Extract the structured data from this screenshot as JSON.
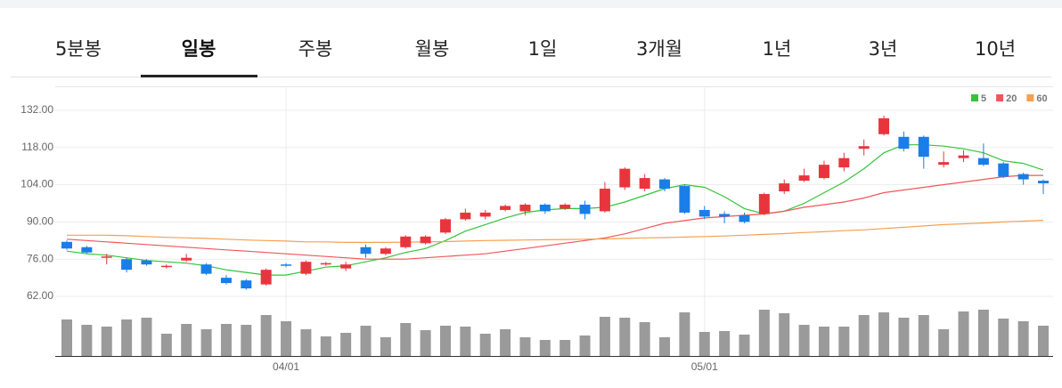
{
  "tabs": [
    "5분봉",
    "일봉",
    "주봉",
    "월봉",
    "1일",
    "3개월",
    "1년",
    "3년",
    "10년"
  ],
  "active_tab": 1,
  "chart_data": [
    {
      "type": "candlestick",
      "categories": [
        null,
        null,
        null,
        null,
        null,
        null,
        null,
        null,
        null,
        null,
        null,
        "04/01",
        null,
        null,
        null,
        null,
        null,
        null,
        null,
        null,
        null,
        null,
        null,
        null,
        null,
        null,
        null,
        null,
        null,
        null,
        null,
        null,
        "05/01",
        null,
        null,
        null,
        null,
        null,
        null,
        null,
        null,
        null,
        null,
        null,
        null,
        null,
        null,
        null,
        null,
        null
      ],
      "open": [
        82.5,
        80.5,
        76.5,
        76,
        75.5,
        73,
        75.5,
        74,
        69,
        68,
        66.5,
        74,
        70.5,
        74,
        72.5,
        80.5,
        78,
        80.5,
        82,
        86,
        91,
        92,
        94.5,
        94,
        96.5,
        95,
        96.5,
        94,
        103,
        102.5,
        106,
        103.5,
        94.5,
        93,
        92.5,
        93,
        101.5,
        105.5,
        106.5,
        110.5,
        117.5,
        123,
        122,
        122,
        111.5,
        114,
        114,
        112,
        108,
        105.5
      ],
      "high": [
        83,
        81,
        78,
        76.5,
        76,
        74,
        78,
        74.5,
        70,
        68.5,
        72.5,
        74.5,
        75.5,
        75,
        75,
        81.5,
        80.5,
        85,
        85,
        91.5,
        95,
        94.5,
        96.5,
        97,
        97,
        97,
        98,
        105,
        110.5,
        108,
        106.5,
        104,
        96,
        94,
        93.5,
        101,
        106,
        110,
        113,
        116,
        121,
        130,
        124,
        122.5,
        116.5,
        117,
        119.5,
        112.5,
        108.5,
        106
      ],
      "low": [
        79.5,
        78,
        74,
        71,
        73.5,
        72.5,
        75,
        70,
        66.5,
        64.5,
        66,
        73,
        70,
        73.5,
        71.5,
        76.5,
        77.5,
        80,
        81.5,
        85.5,
        90.5,
        91,
        94,
        92.5,
        93,
        94.5,
        91,
        93.5,
        102,
        101.5,
        101.5,
        93,
        91,
        89.5,
        89.5,
        92.5,
        100.5,
        105,
        106,
        109,
        115,
        122.5,
        116.5,
        110,
        110.5,
        112.5,
        111,
        106.5,
        104,
        100.5
      ],
      "close": [
        80,
        78.5,
        77,
        72,
        74,
        73.5,
        76.5,
        70.5,
        67,
        65,
        72,
        73.5,
        75,
        74.5,
        74,
        78,
        80,
        84.5,
        84.5,
        91,
        93.5,
        93.5,
        96,
        96.5,
        94,
        96.5,
        93,
        102.5,
        110,
        106.5,
        102.5,
        93.5,
        92,
        92,
        90,
        100.5,
        104.5,
        107.5,
        111.5,
        114,
        118.5,
        129,
        117.5,
        114.5,
        112.5,
        115,
        111.5,
        107,
        106,
        104.5
      ],
      "up_color": "#e8353d",
      "down_color": "#1a7ee8",
      "series": [
        {
          "name": "5",
          "color": "#33c43a",
          "values": [
            79,
            78,
            77.5,
            76.5,
            75.5,
            75,
            74.5,
            73.5,
            72,
            71,
            70,
            70,
            71.5,
            73,
            73.5,
            75,
            76.5,
            78.5,
            80,
            83,
            86.5,
            89,
            91.5,
            93.5,
            94.5,
            95,
            95,
            95.5,
            97.5,
            100,
            102.5,
            104,
            103,
            99.5,
            95,
            93,
            94,
            97,
            101,
            105,
            110,
            116,
            119,
            119,
            118.5,
            117.5,
            116,
            113,
            112,
            109.5
          ]
        },
        {
          "name": "20",
          "color": "#f0565a",
          "values": [
            83.5,
            83,
            82.5,
            82,
            81.5,
            81,
            80.5,
            80,
            79.5,
            79,
            78.5,
            78,
            77.5,
            77,
            76.5,
            76,
            76,
            76,
            76.5,
            77,
            77.5,
            78,
            79,
            80,
            81,
            82,
            83,
            84,
            85.5,
            87.5,
            89.5,
            90.5,
            91.5,
            92,
            92.5,
            93,
            94,
            95.5,
            96.5,
            97.5,
            99,
            101,
            102,
            103,
            104,
            105,
            106,
            107,
            107.5,
            107.5
          ]
        },
        {
          "name": "60",
          "color": "#f5a050",
          "values": [
            85,
            85,
            85,
            84.8,
            84.5,
            84.2,
            84,
            83.8,
            83.5,
            83.2,
            83,
            82.8,
            82.5,
            82.5,
            82.3,
            82.3,
            82.3,
            82.4,
            82.5,
            82.6,
            82.8,
            83,
            83.1,
            83.2,
            83.3,
            83.4,
            83.5,
            83.6,
            83.8,
            84,
            84.1,
            84.3,
            84.5,
            84.7,
            85,
            85.3,
            85.6,
            86,
            86.3,
            86.7,
            87,
            87.5,
            88,
            88.5,
            89,
            89.3,
            89.6,
            90,
            90.3,
            90.6
          ]
        }
      ],
      "ylim": [
        59,
        141
      ],
      "yticks": [
        {
          "value": 132,
          "label": "132.00"
        },
        {
          "value": 118,
          "label": "118.00"
        },
        {
          "value": 104,
          "label": "104.00"
        },
        {
          "value": 90,
          "label": "90.00"
        },
        {
          "value": 76,
          "label": "76.00"
        },
        {
          "value": 62,
          "label": "62.00"
        }
      ],
      "grid": true
    },
    {
      "type": "bar",
      "color": "#9a9a9a",
      "ylim": [
        0,
        55
      ],
      "values": [
        41,
        35,
        33,
        41,
        43,
        25,
        36,
        30,
        36,
        35,
        46,
        39,
        30,
        22,
        26,
        34,
        21,
        37,
        29,
        34,
        33,
        25,
        30,
        21,
        18,
        18,
        23,
        44,
        43,
        38,
        21,
        49,
        27,
        28,
        24,
        52,
        48,
        35,
        33,
        33,
        46,
        49,
        43,
        46,
        30,
        50,
        52,
        42,
        39,
        34
      ]
    }
  ]
}
